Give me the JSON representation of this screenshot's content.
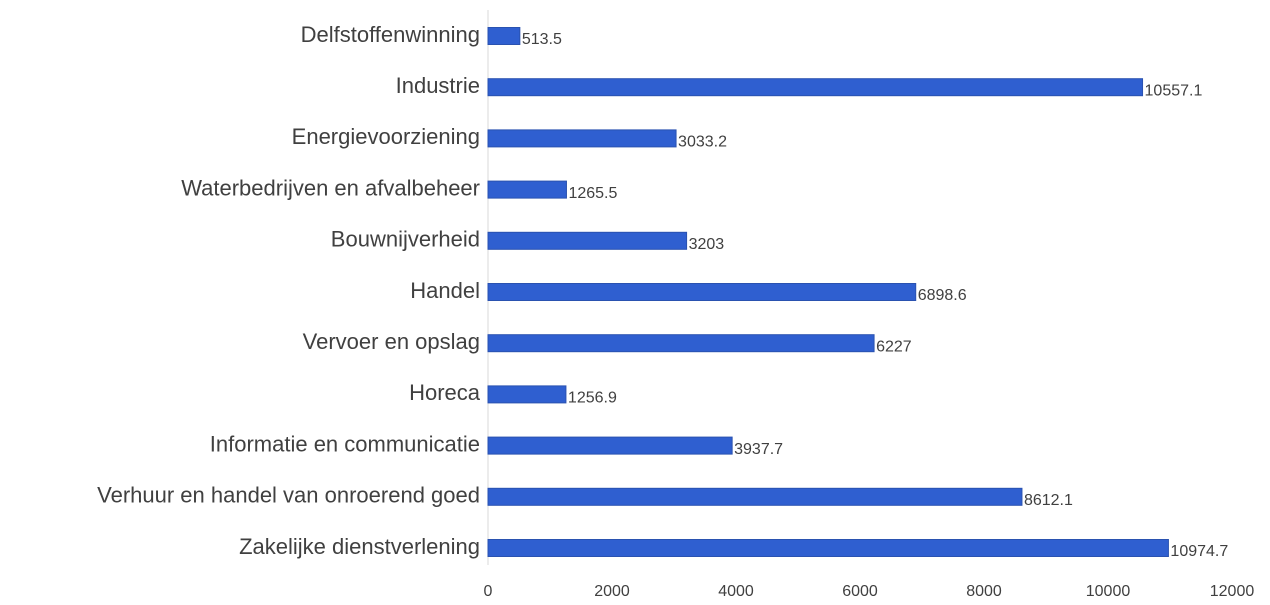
{
  "chart_data": {
    "type": "barh",
    "categories": [
      "Delfstoffenwinning",
      "Industrie",
      "Energievoorziening",
      "Waterbedrijven en afvalbeheer",
      "Bouwnijverheid",
      "Handel",
      "Vervoer en opslag",
      "Horeca",
      "Informatie en communicatie",
      "Verhuur en handel van onroerend goed",
      "Zakelijke dienstverlening"
    ],
    "values": [
      513.5,
      10557.1,
      3033.2,
      1265.5,
      3203,
      6898.6,
      6227,
      1256.9,
      3937.7,
      8612.1,
      10974.7
    ],
    "color": "#2f5fd0",
    "xlim": [
      0,
      12000
    ],
    "xticks": [
      0,
      2000,
      4000,
      6000,
      8000,
      10000,
      12000
    ],
    "grid": false
  }
}
